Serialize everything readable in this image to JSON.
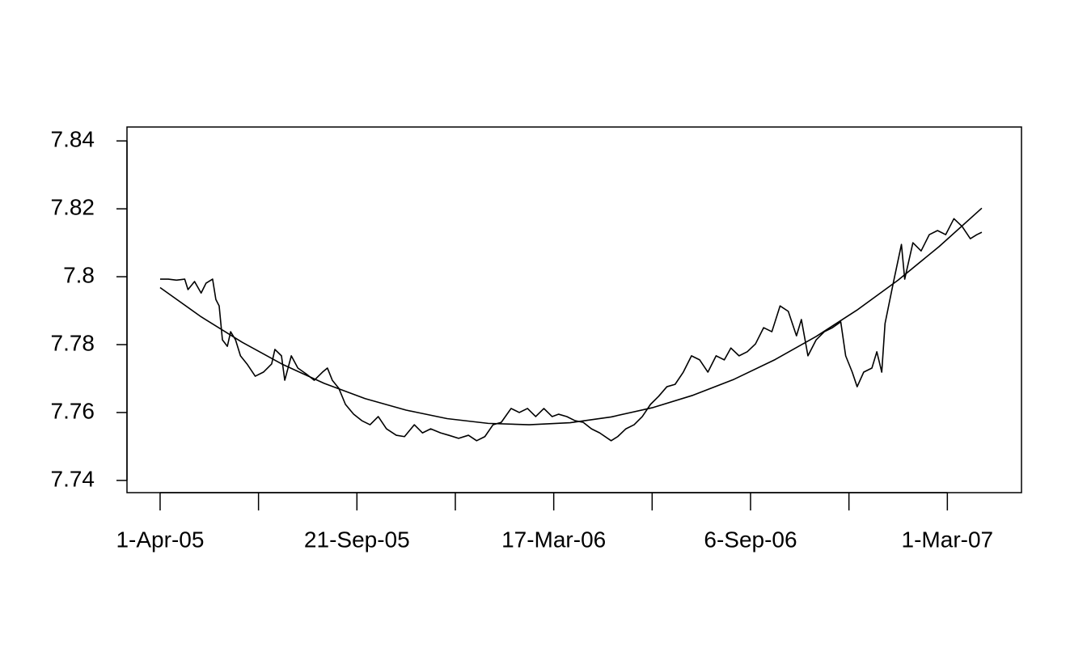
{
  "chart_data": {
    "type": "line",
    "xlim": [
      -19.2,
      526.2
    ],
    "xticks": [
      {
        "value": 1,
        "label": "1-Apr-05"
      },
      {
        "value": 61,
        "label": null
      },
      {
        "value": 121,
        "label": "21-Sep-05"
      },
      {
        "value": 181,
        "label": null
      },
      {
        "value": 241,
        "label": "17-Mar-06"
      },
      {
        "value": 301,
        "label": null
      },
      {
        "value": 361,
        "label": "6-Sep-06"
      },
      {
        "value": 421,
        "label": null
      },
      {
        "value": 481,
        "label": "1-Mar-07"
      }
    ],
    "ylim": [
      7.7364,
      7.8441
    ],
    "yticks": [
      7.74,
      7.76,
      7.78,
      7.8,
      7.82,
      7.84
    ],
    "series": [
      {
        "color": "#000000",
        "x": [
          1,
          6,
          11,
          16,
          18,
          22,
          26,
          29,
          33,
          35,
          37,
          39,
          42,
          44,
          47,
          50,
          54,
          59,
          64,
          69,
          71,
          75,
          77,
          81,
          85,
          90,
          95,
          100,
          103,
          106,
          110,
          114,
          119,
          124,
          129,
          134,
          139,
          145,
          150,
          156,
          161,
          166,
          172,
          177,
          183,
          189,
          194,
          199,
          204,
          209,
          215,
          220,
          225,
          230,
          235,
          240,
          244,
          249,
          254,
          259,
          264,
          269,
          276,
          280,
          285,
          290,
          295,
          300,
          305,
          310,
          315,
          320,
          325,
          330,
          335,
          340,
          345,
          349,
          354,
          359,
          364,
          369,
          374,
          379,
          384,
          389,
          392,
          396,
          401,
          406,
          411,
          416,
          419,
          423,
          426,
          430,
          435,
          438,
          441,
          443,
          448,
          453,
          455,
          460,
          465,
          470,
          475,
          480,
          485,
          490,
          495,
          499,
          502
        ],
        "values": [
          7.7993,
          7.7993,
          7.799,
          7.7993,
          7.7962,
          7.7986,
          7.7952,
          7.7981,
          7.7993,
          7.7933,
          7.7914,
          7.7814,
          7.7795,
          7.7838,
          7.7814,
          7.7767,
          7.7743,
          7.7707,
          7.7719,
          7.7743,
          7.7786,
          7.7767,
          7.7695,
          7.7767,
          7.7731,
          7.7714,
          7.7695,
          7.7719,
          7.7731,
          7.7695,
          7.7671,
          7.7624,
          7.7595,
          7.7576,
          7.7564,
          7.7588,
          7.7552,
          7.7533,
          7.7529,
          7.7564,
          7.754,
          7.7552,
          7.754,
          7.7533,
          7.7524,
          7.7533,
          7.7517,
          7.7529,
          7.7564,
          7.7571,
          7.7612,
          7.76,
          7.7612,
          7.7588,
          7.7612,
          7.7588,
          7.7595,
          7.7588,
          7.7576,
          7.7571,
          7.7552,
          7.754,
          7.7517,
          7.7529,
          7.7552,
          7.7564,
          7.7588,
          7.7624,
          7.7648,
          7.7676,
          7.7683,
          7.7719,
          7.7767,
          7.7755,
          7.7719,
          7.7767,
          7.7755,
          7.779,
          7.7767,
          7.7779,
          7.7802,
          7.785,
          7.7838,
          7.7914,
          7.7898,
          7.7826,
          7.7874,
          7.7767,
          7.7814,
          7.7838,
          7.785,
          7.7867,
          7.7767,
          7.7719,
          7.7676,
          7.7719,
          7.7731,
          7.7779,
          7.7719,
          7.7862,
          7.7981,
          7.8095,
          7.7993,
          7.81,
          7.8076,
          7.8124,
          7.8136,
          7.8124,
          7.8171,
          7.8148,
          7.8112,
          7.8124,
          7.8131
        ]
      },
      {
        "color": "#000000",
        "x": [
          1,
          26,
          51,
          76,
          101,
          126,
          151,
          176,
          201,
          226,
          251,
          276,
          301,
          326,
          351,
          376,
          401,
          426,
          451,
          476,
          502
        ],
        "values": [
          7.7968,
          7.7882,
          7.7807,
          7.7741,
          7.7686,
          7.7641,
          7.7607,
          7.7582,
          7.7568,
          7.7564,
          7.757,
          7.7587,
          7.7614,
          7.7651,
          7.7698,
          7.7756,
          7.7824,
          7.7902,
          7.799,
          7.8089,
          7.8202
        ]
      }
    ]
  }
}
